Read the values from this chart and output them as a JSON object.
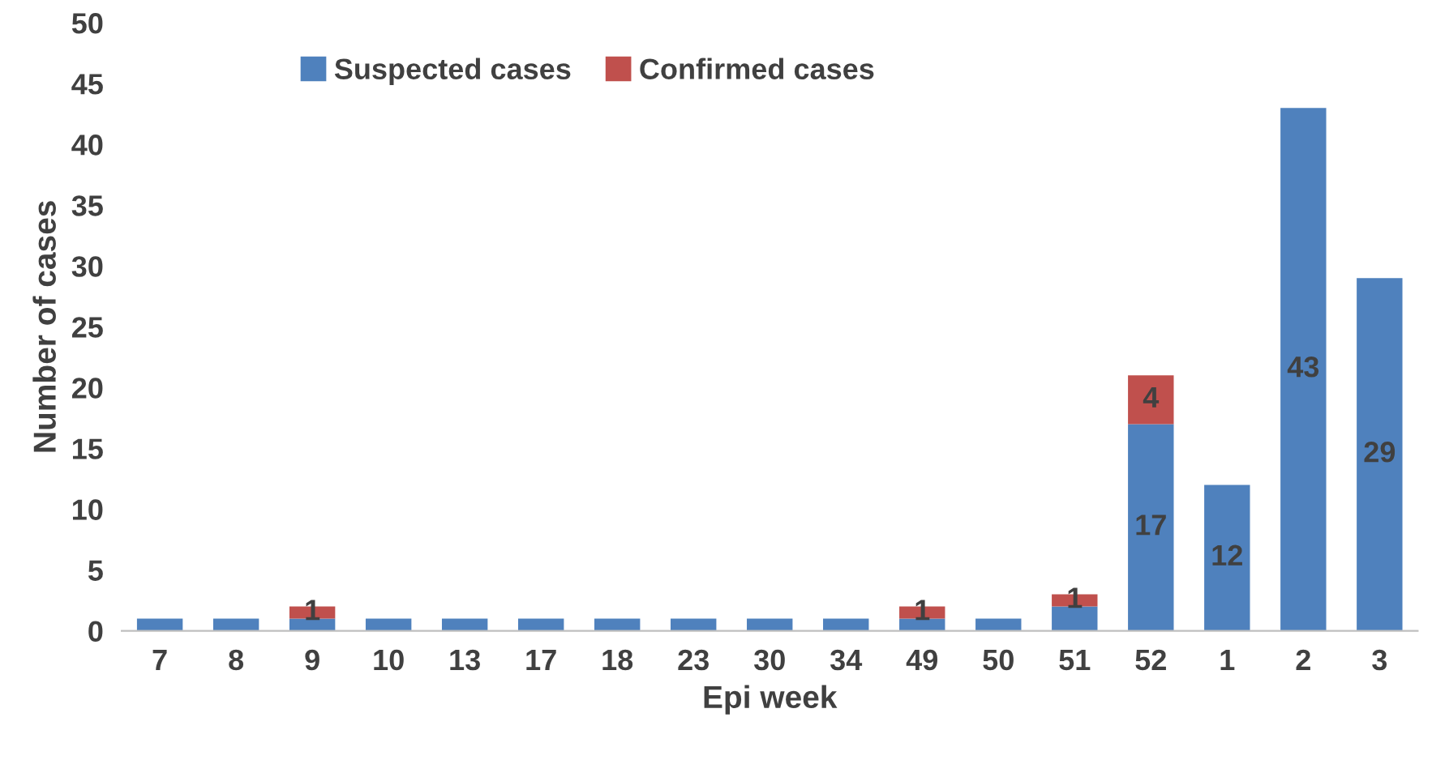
{
  "chart_data": {
    "type": "bar",
    "stacked": true,
    "xlabel": "Epi week",
    "ylabel": "Number of cases",
    "categories": [
      "7",
      "8",
      "9",
      "10",
      "13",
      "17",
      "18",
      "23",
      "30",
      "34",
      "49",
      "50",
      "51",
      "52",
      "1",
      "2",
      "3"
    ],
    "series": [
      {
        "name": "Suspected cases",
        "color": "#4f81bd",
        "values": [
          1,
          1,
          1,
          1,
          1,
          1,
          1,
          1,
          1,
          1,
          1,
          1,
          2,
          17,
          12,
          43,
          29
        ],
        "value_labels": [
          null,
          null,
          null,
          null,
          null,
          null,
          null,
          null,
          null,
          null,
          null,
          null,
          null,
          "17",
          "12",
          "43",
          "29"
        ]
      },
      {
        "name": "Confirmed cases",
        "color": "#c0504d",
        "values": [
          0,
          0,
          1,
          0,
          0,
          0,
          0,
          0,
          0,
          0,
          1,
          0,
          1,
          4,
          0,
          0,
          0
        ],
        "value_labels": [
          null,
          null,
          "1",
          null,
          null,
          null,
          null,
          null,
          null,
          null,
          "1",
          null,
          "1",
          "4",
          null,
          null,
          null
        ]
      }
    ],
    "ylim": [
      0,
      50
    ],
    "yticks": [
      0,
      5,
      10,
      15,
      20,
      25,
      30,
      35,
      40,
      45,
      50
    ],
    "grid": false,
    "legend": "top"
  }
}
